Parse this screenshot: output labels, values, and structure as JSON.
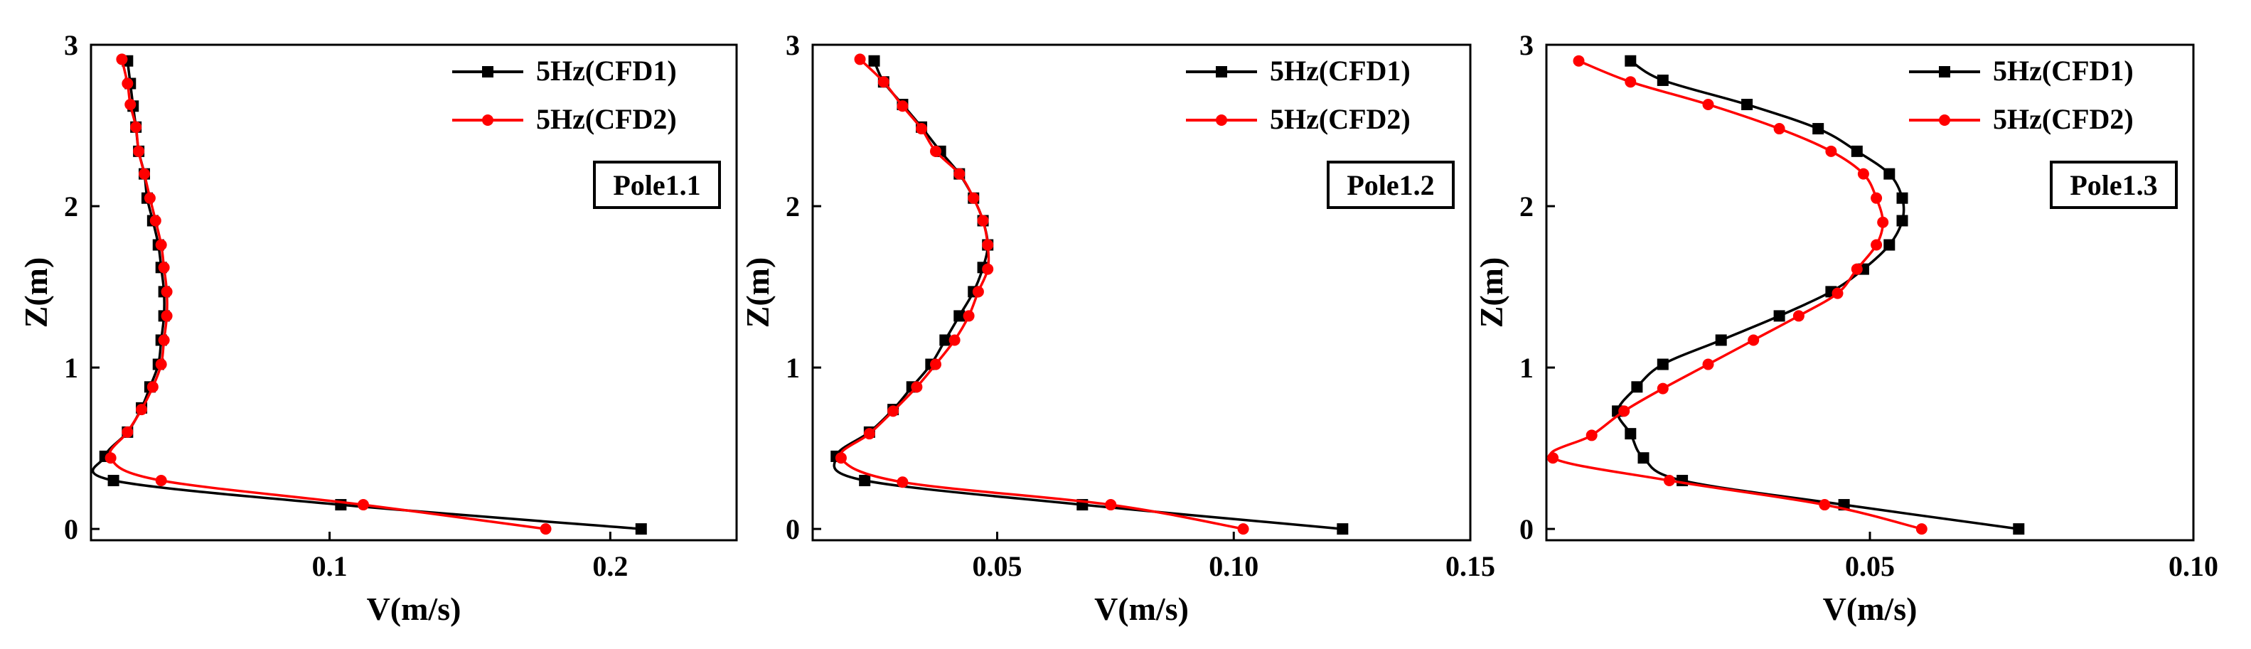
{
  "chart_data": [
    {
      "type": "line",
      "panel_label": "Pole1.1",
      "xlabel": "V(m/s)",
      "ylabel": "Z(m)",
      "xlim": [
        0.015,
        0.245
      ],
      "ylim": [
        -0.07,
        3.0
      ],
      "xticks": [
        0.1,
        0.2
      ],
      "xtick_labels": [
        "0.1",
        "0.2"
      ],
      "yticks": [
        0,
        1,
        2,
        3
      ],
      "ytick_labels": [
        "0",
        "1",
        "2",
        "3"
      ],
      "legend_position": "top-right",
      "series": [
        {
          "name": "5Hz(CFD1)",
          "color": "#000000",
          "marker": "square",
          "x": [
            0.211,
            0.104,
            0.023,
            0.02,
            0.028,
            0.033,
            0.036,
            0.039,
            0.04,
            0.041,
            0.041,
            0.04,
            0.039,
            0.037,
            0.035,
            0.034,
            0.032,
            0.031,
            0.03,
            0.029,
            0.028
          ],
          "y": [
            0.0,
            0.15,
            0.3,
            0.45,
            0.6,
            0.75,
            0.88,
            1.02,
            1.17,
            1.32,
            1.47,
            1.62,
            1.76,
            1.91,
            2.05,
            2.2,
            2.34,
            2.49,
            2.62,
            2.76,
            2.9
          ]
        },
        {
          "name": "5Hz(CFD2)",
          "color": "#ff0000",
          "marker": "circle",
          "x": [
            0.177,
            0.112,
            0.04,
            0.022,
            0.028,
            0.033,
            0.037,
            0.04,
            0.041,
            0.042,
            0.042,
            0.041,
            0.04,
            0.038,
            0.036,
            0.034,
            0.032,
            0.031,
            0.029,
            0.028,
            0.026
          ],
          "y": [
            0.0,
            0.15,
            0.3,
            0.44,
            0.6,
            0.74,
            0.88,
            1.02,
            1.17,
            1.32,
            1.47,
            1.62,
            1.76,
            1.91,
            2.05,
            2.2,
            2.34,
            2.49,
            2.63,
            2.76,
            2.91
          ]
        }
      ]
    },
    {
      "type": "line",
      "panel_label": "Pole1.2",
      "xlabel": "V(m/s)",
      "ylabel": "Z(m)",
      "xlim": [
        0.011,
        0.15
      ],
      "ylim": [
        -0.07,
        3.0
      ],
      "xticks": [
        0.05,
        0.1,
        0.15
      ],
      "xtick_labels": [
        "0.05",
        "0.10",
        "0.15"
      ],
      "yticks": [
        0,
        1,
        2,
        3
      ],
      "ytick_labels": [
        "0",
        "1",
        "2",
        "3"
      ],
      "legend_position": "top-right",
      "series": [
        {
          "name": "5Hz(CFD1)",
          "color": "#000000",
          "marker": "square",
          "x": [
            0.123,
            0.068,
            0.022,
            0.016,
            0.023,
            0.028,
            0.032,
            0.036,
            0.039,
            0.042,
            0.045,
            0.047,
            0.048,
            0.047,
            0.045,
            0.042,
            0.038,
            0.034,
            0.03,
            0.026,
            0.024
          ],
          "y": [
            0.0,
            0.15,
            0.3,
            0.45,
            0.6,
            0.74,
            0.88,
            1.02,
            1.17,
            1.32,
            1.47,
            1.62,
            1.76,
            1.91,
            2.05,
            2.2,
            2.34,
            2.49,
            2.63,
            2.77,
            2.9
          ]
        },
        {
          "name": "5Hz(CFD2)",
          "color": "#ff0000",
          "marker": "circle",
          "x": [
            0.102,
            0.074,
            0.03,
            0.017,
            0.023,
            0.028,
            0.033,
            0.037,
            0.041,
            0.044,
            0.046,
            0.048,
            0.048,
            0.047,
            0.045,
            0.042,
            0.037,
            0.034,
            0.03,
            0.026,
            0.021
          ],
          "y": [
            0.0,
            0.15,
            0.29,
            0.44,
            0.59,
            0.73,
            0.88,
            1.02,
            1.17,
            1.32,
            1.47,
            1.61,
            1.76,
            1.91,
            2.05,
            2.2,
            2.34,
            2.48,
            2.62,
            2.77,
            2.91
          ]
        }
      ]
    },
    {
      "type": "line",
      "panel_label": "Pole1.3",
      "xlabel": "V(m/s)",
      "ylabel": "Z(m)",
      "xlim": [
        0.0,
        0.1
      ],
      "ylim": [
        -0.07,
        3.0
      ],
      "xticks": [
        0.05,
        0.1
      ],
      "xtick_labels": [
        "0.05",
        "0.10"
      ],
      "yticks": [
        0,
        1,
        2,
        3
      ],
      "ytick_labels": [
        "0",
        "1",
        "2",
        "3"
      ],
      "legend_position": "top-right",
      "series": [
        {
          "name": "5Hz(CFD1)",
          "color": "#000000",
          "marker": "square",
          "x": [
            0.073,
            0.046,
            0.021,
            0.015,
            0.013,
            0.011,
            0.014,
            0.018,
            0.027,
            0.036,
            0.044,
            0.049,
            0.053,
            0.055,
            0.055,
            0.053,
            0.048,
            0.042,
            0.031,
            0.018,
            0.013
          ],
          "y": [
            0.0,
            0.15,
            0.3,
            0.44,
            0.59,
            0.73,
            0.88,
            1.02,
            1.17,
            1.32,
            1.47,
            1.61,
            1.76,
            1.91,
            2.05,
            2.2,
            2.34,
            2.48,
            2.63,
            2.78,
            2.9
          ]
        },
        {
          "name": "5Hz(CFD2)",
          "color": "#ff0000",
          "marker": "circle",
          "x": [
            0.058,
            0.043,
            0.019,
            0.001,
            0.007,
            0.012,
            0.018,
            0.025,
            0.032,
            0.039,
            0.045,
            0.048,
            0.051,
            0.052,
            0.051,
            0.049,
            0.044,
            0.036,
            0.025,
            0.013,
            0.005
          ],
          "y": [
            0.0,
            0.15,
            0.3,
            0.44,
            0.58,
            0.73,
            0.87,
            1.02,
            1.17,
            1.32,
            1.46,
            1.61,
            1.76,
            1.9,
            2.05,
            2.2,
            2.34,
            2.48,
            2.63,
            2.77,
            2.9
          ]
        }
      ]
    }
  ]
}
